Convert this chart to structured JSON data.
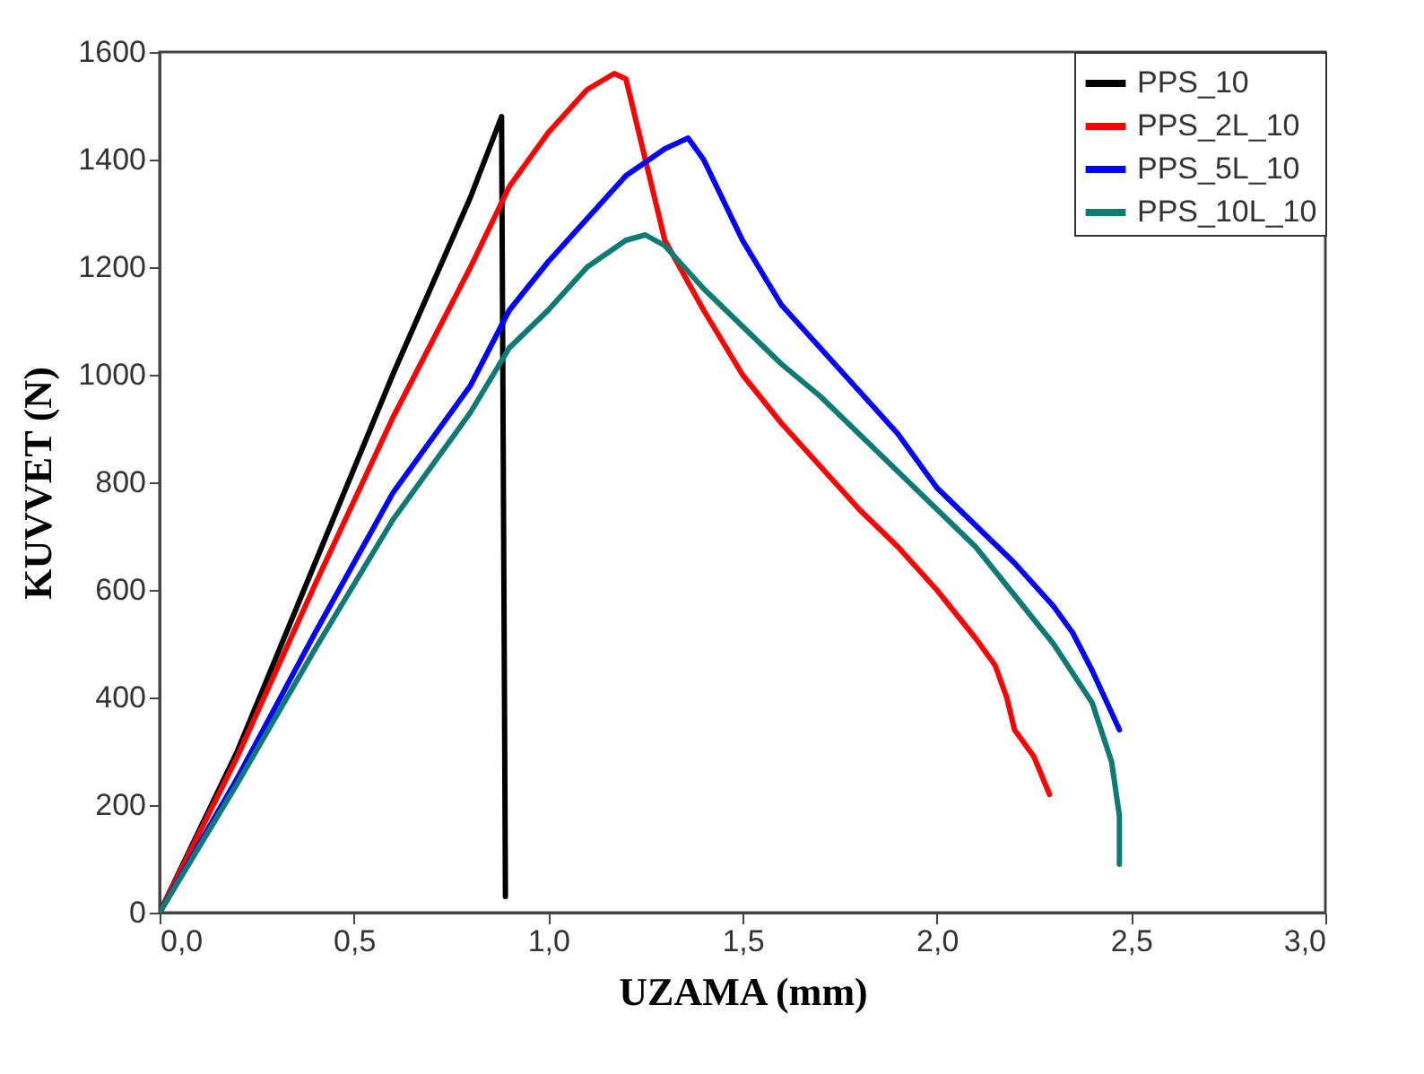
{
  "chart_data": {
    "type": "line",
    "xlabel": "UZAMA (mm)",
    "ylabel": "KUVVET (N)",
    "xlim": [
      0,
      3
    ],
    "ylim": [
      0,
      1600
    ],
    "xticks": [
      {
        "value": 0,
        "label": "0,0"
      },
      {
        "value": 0.5,
        "label": "0,5"
      },
      {
        "value": 1,
        "label": "1,0"
      },
      {
        "value": 1.5,
        "label": "1,5"
      },
      {
        "value": 2,
        "label": "2,0"
      },
      {
        "value": 2.5,
        "label": "2,5"
      },
      {
        "value": 3,
        "label": "3,0"
      }
    ],
    "yticks": [
      0,
      200,
      400,
      600,
      800,
      1000,
      1200,
      1400,
      1600
    ],
    "grid": false,
    "legend": "top right",
    "marker": "none",
    "line_style": "solid",
    "series": [
      {
        "name": "PPS_10",
        "color": "#000000",
        "x": [
          0,
          0.2,
          0.4,
          0.6,
          0.8,
          0.88,
          0.89
        ],
        "values": [
          0,
          300,
          650,
          1000,
          1330,
          1480,
          30
        ]
      },
      {
        "name": "PPS_2L_10",
        "color": "#ff0000",
        "x": [
          0,
          0.2,
          0.4,
          0.6,
          0.8,
          0.9,
          1.0,
          1.1,
          1.17,
          1.2,
          1.25,
          1.3,
          1.4,
          1.5,
          1.6,
          1.7,
          1.8,
          1.9,
          2.0,
          2.1,
          2.15,
          2.18,
          2.2,
          2.25,
          2.29
        ],
        "values": [
          0,
          290,
          610,
          920,
          1200,
          1350,
          1450,
          1530,
          1560,
          1550,
          1400,
          1250,
          1120,
          1000,
          910,
          830,
          750,
          680,
          600,
          510,
          460,
          400,
          340,
          290,
          220
        ]
      },
      {
        "name": "PPS_5L_10",
        "color": "#0000ff",
        "x": [
          0,
          0.2,
          0.4,
          0.6,
          0.8,
          0.9,
          1.0,
          1.1,
          1.2,
          1.3,
          1.36,
          1.4,
          1.5,
          1.6,
          1.7,
          1.8,
          1.9,
          2.0,
          2.1,
          2.2,
          2.3,
          2.35,
          2.4,
          2.47
        ],
        "values": [
          0,
          250,
          520,
          780,
          980,
          1120,
          1210,
          1290,
          1370,
          1420,
          1440,
          1400,
          1250,
          1130,
          1050,
          970,
          890,
          790,
          720,
          650,
          570,
          520,
          450,
          340
        ]
      },
      {
        "name": "PPS_10L_10",
        "color": "#0e7a73",
        "x": [
          0,
          0.2,
          0.4,
          0.6,
          0.8,
          0.9,
          1.0,
          1.1,
          1.2,
          1.25,
          1.3,
          1.4,
          1.5,
          1.6,
          1.7,
          1.8,
          1.9,
          2.0,
          2.1,
          2.2,
          2.3,
          2.4,
          2.45,
          2.47,
          2.47
        ],
        "values": [
          0,
          240,
          490,
          730,
          930,
          1050,
          1120,
          1200,
          1250,
          1260,
          1240,
          1160,
          1090,
          1020,
          960,
          890,
          820,
          750,
          680,
          590,
          500,
          390,
          280,
          180,
          90
        ]
      }
    ]
  }
}
